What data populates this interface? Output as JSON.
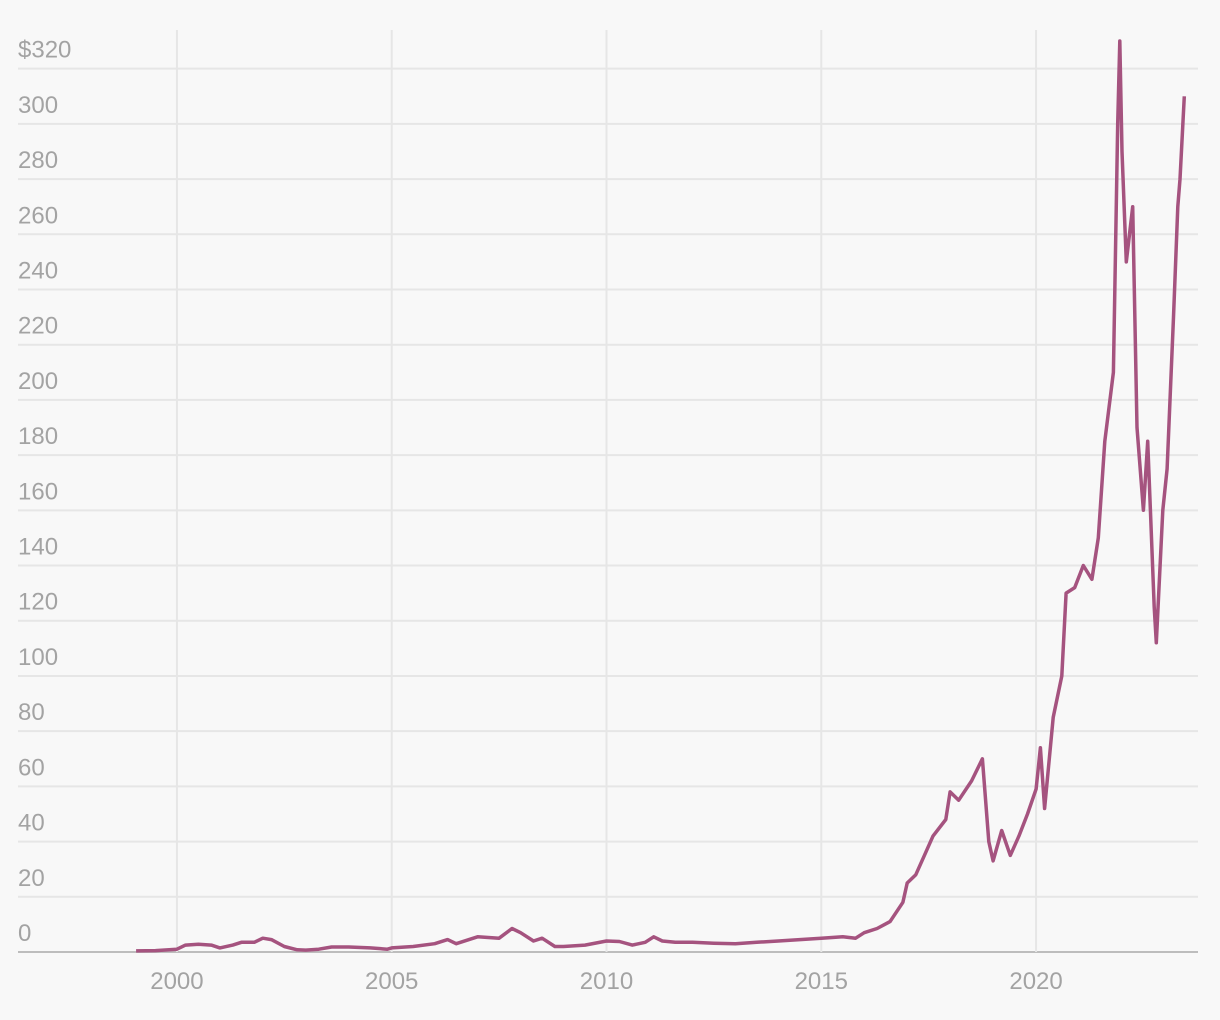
{
  "chart_data": {
    "type": "line",
    "x": [
      1999.05,
      1999.5,
      2000.0,
      2000.2,
      2000.5,
      2000.8,
      2001.0,
      2001.3,
      2001.5,
      2001.8,
      2002.0,
      2002.2,
      2002.5,
      2002.8,
      2003.0,
      2003.3,
      2003.6,
      2004.0,
      2004.5,
      2004.9,
      2005.0,
      2005.5,
      2006.0,
      2006.3,
      2006.5,
      2006.8,
      2007.0,
      2007.5,
      2007.8,
      2008.0,
      2008.3,
      2008.5,
      2008.8,
      2009.0,
      2009.5,
      2010.0,
      2010.3,
      2010.6,
      2010.9,
      2011.1,
      2011.3,
      2011.6,
      2012.0,
      2012.5,
      2013.0,
      2013.5,
      2014.0,
      2014.5,
      2015.0,
      2015.5,
      2015.8,
      2016.0,
      2016.3,
      2016.6,
      2016.9,
      2017.0,
      2017.2,
      2017.4,
      2017.6,
      2017.9,
      2018.0,
      2018.2,
      2018.5,
      2018.75,
      2018.9,
      2019.0,
      2019.2,
      2019.4,
      2019.6,
      2019.8,
      2020.0,
      2020.1,
      2020.2,
      2020.4,
      2020.6,
      2020.7,
      2020.9,
      2021.1,
      2021.3,
      2021.45,
      2021.6,
      2021.8,
      2021.9,
      2021.95,
      2022.0,
      2022.1,
      2022.25,
      2022.35,
      2022.5,
      2022.6,
      2022.75,
      2022.8,
      2022.95,
      2023.05,
      2023.2,
      2023.3,
      2023.35,
      2023.45
    ],
    "series": [
      {
        "color": "#a5537f",
        "values": [
          0.4,
          0.5,
          1,
          2.5,
          2.8,
          2.5,
          1.5,
          2.5,
          3.5,
          3.5,
          5,
          4.5,
          2,
          0.8,
          0.7,
          1,
          1.8,
          1.8,
          1.5,
          1.0,
          1.5,
          2,
          3,
          4.5,
          3,
          4.5,
          5.5,
          5,
          8.5,
          7,
          4,
          5,
          2,
          2,
          2.5,
          4,
          3.8,
          2.5,
          3.5,
          5.5,
          4,
          3.5,
          3.5,
          3.2,
          3.0,
          3.5,
          4.0,
          4.5,
          5,
          5.5,
          5,
          7,
          8.5,
          11,
          18,
          25,
          28,
          35,
          42,
          48,
          58,
          55,
          62,
          70,
          40,
          33,
          44,
          35,
          42,
          50,
          59,
          74,
          52,
          85,
          100,
          130,
          132,
          140,
          135,
          150,
          185,
          210,
          300,
          330,
          290,
          250,
          270,
          190,
          160,
          185,
          125,
          112,
          160,
          175,
          230,
          270,
          280,
          310
        ]
      }
    ],
    "xlim": [
      1996.3,
      2023.77
    ],
    "xticks": [
      2000,
      2005,
      2010,
      2015,
      2020
    ],
    "ylim": [
      0,
      334
    ],
    "yticks": [
      0,
      20,
      40,
      60,
      80,
      100,
      120,
      140,
      160,
      180,
      200,
      220,
      240,
      260,
      280,
      300,
      {
        "value": 320,
        "label": "$320"
      }
    ],
    "grid": true
  }
}
